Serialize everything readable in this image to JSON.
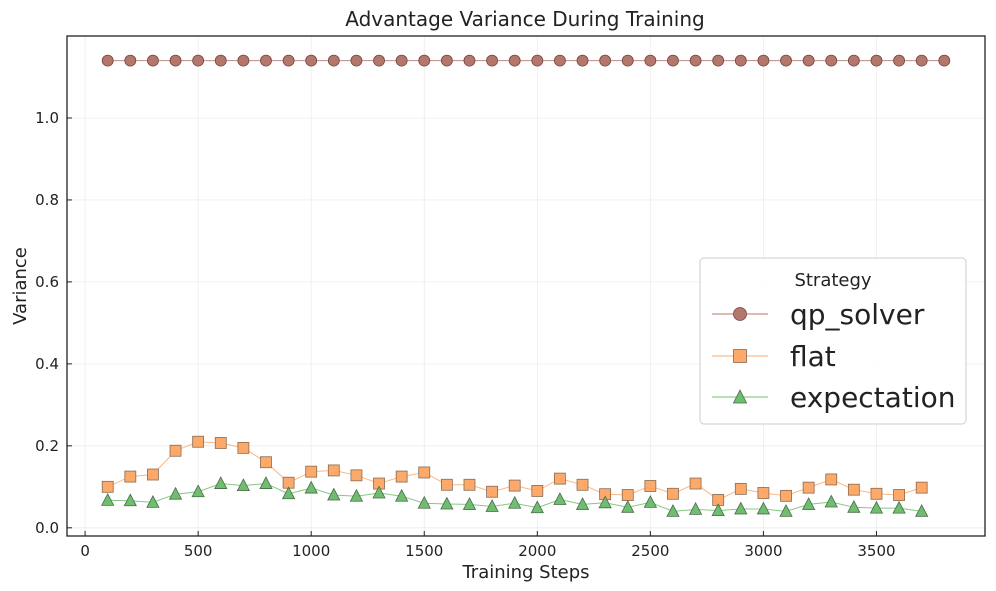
{
  "chart_data": {
    "type": "line",
    "title": "Advantage Variance During Training",
    "xlabel": "Training Steps",
    "ylabel": "Variance",
    "xlim": [
      -80,
      3980
    ],
    "ylim": [
      -0.02,
      1.2
    ],
    "x_ticks": [
      0,
      500,
      1000,
      1500,
      2000,
      2500,
      3000,
      3500
    ],
    "y_ticks": [
      0.0,
      0.2,
      0.4,
      0.6,
      0.8,
      1.0
    ],
    "x_tick_labels": [
      "0",
      "500",
      "1000",
      "1500",
      "2000",
      "2500",
      "3000",
      "3500"
    ],
    "y_tick_labels": [
      "0.0",
      "0.2",
      "0.4",
      "0.6",
      "0.8",
      "1.0"
    ],
    "grid": true,
    "legend": {
      "title": "Strategy",
      "placement": "center-right",
      "entries": [
        "qp_solver",
        "flat",
        "expectation"
      ]
    },
    "series": [
      {
        "name": "qp_solver",
        "marker": "circle",
        "color": "#b5766b",
        "edge": "#6e4a44",
        "x": [
          100,
          200,
          300,
          400,
          500,
          600,
          700,
          800,
          900,
          1000,
          1100,
          1200,
          1300,
          1400,
          1500,
          1600,
          1700,
          1800,
          1900,
          2000,
          2100,
          2200,
          2300,
          2400,
          2500,
          2600,
          2700,
          2800,
          2900,
          3000,
          3100,
          3200,
          3300,
          3400,
          3500,
          3600,
          3700,
          3800
        ],
        "values": [
          1.14,
          1.14,
          1.14,
          1.14,
          1.14,
          1.14,
          1.14,
          1.14,
          1.14,
          1.14,
          1.14,
          1.14,
          1.14,
          1.14,
          1.14,
          1.14,
          1.14,
          1.14,
          1.14,
          1.14,
          1.14,
          1.14,
          1.14,
          1.14,
          1.14,
          1.14,
          1.14,
          1.14,
          1.14,
          1.14,
          1.14,
          1.14,
          1.14,
          1.14,
          1.14,
          1.14,
          1.14,
          1.14
        ]
      },
      {
        "name": "flat",
        "marker": "square",
        "color": "#fca96a",
        "edge": "#8a6a52",
        "x": [
          100,
          200,
          300,
          400,
          500,
          600,
          700,
          800,
          900,
          1000,
          1100,
          1200,
          1300,
          1400,
          1500,
          1600,
          1700,
          1800,
          1900,
          2000,
          2100,
          2200,
          2300,
          2400,
          2500,
          2600,
          2700,
          2800,
          2900,
          3000,
          3100,
          3200,
          3300,
          3400,
          3500,
          3600,
          3700
        ],
        "values": [
          0.1,
          0.125,
          0.13,
          0.188,
          0.21,
          0.207,
          0.195,
          0.16,
          0.11,
          0.137,
          0.14,
          0.128,
          0.108,
          0.125,
          0.135,
          0.105,
          0.105,
          0.088,
          0.103,
          0.09,
          0.12,
          0.105,
          0.082,
          0.08,
          0.102,
          0.083,
          0.108,
          0.068,
          0.095,
          0.085,
          0.078,
          0.098,
          0.118,
          0.093,
          0.083,
          0.08,
          0.098
        ]
      },
      {
        "name": "expectation",
        "marker": "triangle",
        "color": "#6fbe6f",
        "edge": "#4a6a4a",
        "x": [
          100,
          200,
          300,
          400,
          500,
          600,
          700,
          800,
          900,
          1000,
          1100,
          1200,
          1300,
          1400,
          1500,
          1600,
          1700,
          1800,
          1900,
          2000,
          2100,
          2200,
          2300,
          2400,
          2500,
          2600,
          2700,
          2800,
          2900,
          3000,
          3100,
          3200,
          3300,
          3400,
          3500,
          3600,
          3700
        ],
        "values": [
          0.067,
          0.066,
          0.062,
          0.082,
          0.088,
          0.108,
          0.103,
          0.108,
          0.083,
          0.097,
          0.08,
          0.077,
          0.085,
          0.077,
          0.06,
          0.058,
          0.057,
          0.052,
          0.06,
          0.049,
          0.069,
          0.057,
          0.061,
          0.05,
          0.062,
          0.04,
          0.045,
          0.042,
          0.046,
          0.046,
          0.04,
          0.057,
          0.063,
          0.05,
          0.048,
          0.048,
          0.04
        ]
      }
    ]
  }
}
